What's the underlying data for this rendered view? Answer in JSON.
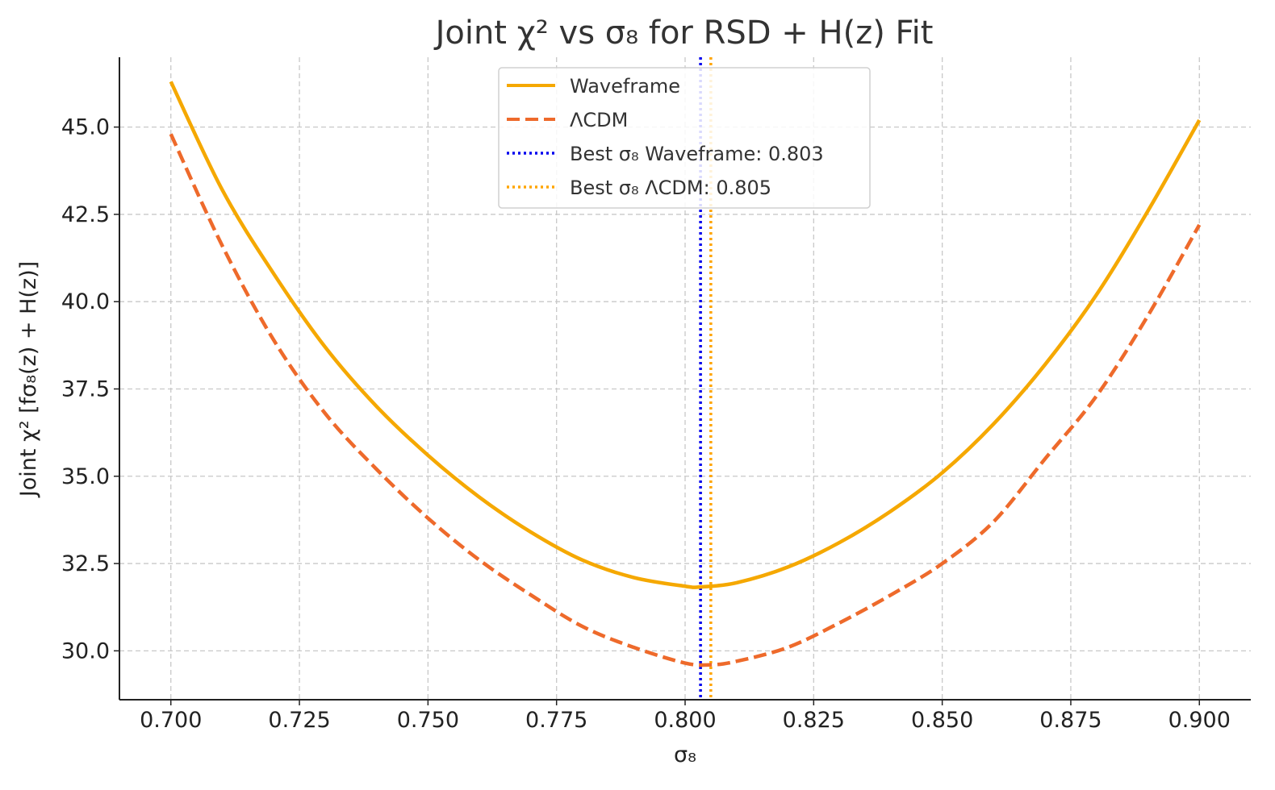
{
  "chart_data": {
    "type": "line",
    "title": "Joint χ² vs σ₈ for RSD + H(z) Fit",
    "xlabel": "σ₈",
    "ylabel": "Joint χ² [fσ₈(z) + H(z)]",
    "xlim": [
      0.69,
      0.91
    ],
    "ylim": [
      28.6,
      47.0
    ],
    "xticks": [
      0.7,
      0.725,
      0.75,
      0.775,
      0.8,
      0.825,
      0.85,
      0.875,
      0.9
    ],
    "xtick_labels": [
      "0.700",
      "0.725",
      "0.750",
      "0.775",
      "0.800",
      "0.825",
      "0.850",
      "0.875",
      "0.900"
    ],
    "yticks": [
      30.0,
      32.5,
      35.0,
      37.5,
      40.0,
      42.5,
      45.0
    ],
    "ytick_labels": [
      "30.0",
      "32.5",
      "35.0",
      "37.5",
      "40.0",
      "42.5",
      "45.0"
    ],
    "grid": true,
    "legend_position": "top-center",
    "series": [
      {
        "name": "Waveframe",
        "style": "solid",
        "color": "#f5a800",
        "x": [
          0.7,
          0.71,
          0.72,
          0.73,
          0.74,
          0.75,
          0.76,
          0.77,
          0.78,
          0.79,
          0.8,
          0.803,
          0.81,
          0.82,
          0.83,
          0.84,
          0.85,
          0.86,
          0.87,
          0.88,
          0.89,
          0.9
        ],
        "y": [
          46.3,
          43.2,
          40.8,
          38.7,
          37.0,
          35.6,
          34.4,
          33.4,
          32.6,
          32.1,
          31.85,
          31.83,
          31.95,
          32.4,
          33.1,
          34.0,
          35.1,
          36.5,
          38.2,
          40.2,
          42.6,
          45.2
        ]
      },
      {
        "name": "ΛCDM",
        "style": "dashed",
        "color": "#ee6a2b",
        "x": [
          0.7,
          0.71,
          0.72,
          0.73,
          0.74,
          0.75,
          0.76,
          0.77,
          0.78,
          0.79,
          0.8,
          0.805,
          0.81,
          0.82,
          0.83,
          0.84,
          0.85,
          0.86,
          0.87,
          0.88,
          0.89,
          0.9
        ],
        "y": [
          44.8,
          41.6,
          38.9,
          36.8,
          35.2,
          33.8,
          32.6,
          31.6,
          30.7,
          30.1,
          29.65,
          29.6,
          29.7,
          30.1,
          30.8,
          31.6,
          32.5,
          33.7,
          35.5,
          37.3,
          39.6,
          42.2
        ]
      }
    ],
    "vlines": [
      {
        "name": "Best σ₈ Waveframe: 0.803",
        "x": 0.803,
        "color": "#0000ee",
        "style": "dotted"
      },
      {
        "name": "Best σ₈ ΛCDM: 0.805",
        "x": 0.805,
        "color": "#ffa500",
        "style": "dotted"
      }
    ]
  }
}
